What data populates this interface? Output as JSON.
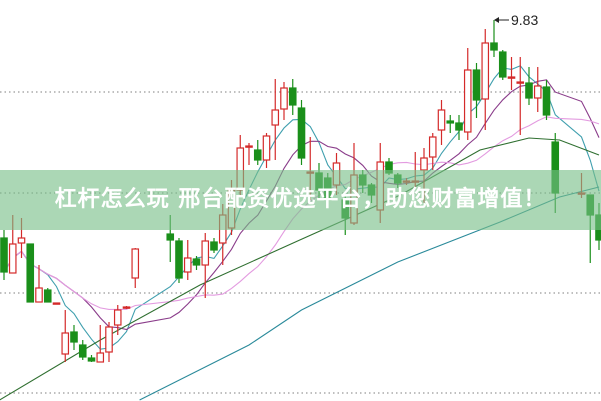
{
  "banner": {
    "text": "杠杆怎么玩 邢台配资优选平台，助您财富增值！"
  },
  "chart_data": {
    "type": "candlestick",
    "annotations": [
      {
        "label": "9.83",
        "index": 56,
        "price": 9.83
      }
    ],
    "colors": {
      "up": "#d42a2a",
      "down": "#1a8f1a",
      "ma5": "#3f9fae",
      "ma10": "#8a3c8a",
      "ma20": "#e39be0",
      "ma_long1": "#2f6f30",
      "ma_long2": "#2a8a9a",
      "grid": "#999999"
    },
    "ylim": [
      6.02,
      10.03
    ],
    "candles": [
      {
        "i": 0,
        "o": 7.65,
        "h": 7.73,
        "l": 7.23,
        "c": 7.31
      },
      {
        "i": 1,
        "o": 7.3,
        "h": 7.88,
        "l": 7.3,
        "c": 7.59
      },
      {
        "i": 2,
        "o": 7.6,
        "h": 7.85,
        "l": 7.45,
        "c": 7.65
      },
      {
        "i": 3,
        "o": 7.59,
        "h": 7.59,
        "l": 7.01,
        "c": 7.01
      },
      {
        "i": 4,
        "o": 7.01,
        "h": 7.38,
        "l": 7.01,
        "c": 7.15
      },
      {
        "i": 5,
        "o": 7.13,
        "h": 7.15,
        "l": 7.01,
        "c": 7.01
      },
      {
        "i": 6,
        "o": 7.0,
        "h": 7.0,
        "l": 7.0,
        "c": 7.0
      },
      {
        "i": 7,
        "o": 6.49,
        "h": 6.93,
        "l": 6.41,
        "c": 6.7
      },
      {
        "i": 8,
        "o": 6.71,
        "h": 6.78,
        "l": 6.53,
        "c": 6.61
      },
      {
        "i": 9,
        "o": 6.58,
        "h": 6.63,
        "l": 6.43,
        "c": 6.46
      },
      {
        "i": 10,
        "o": 6.45,
        "h": 6.48,
        "l": 6.41,
        "c": 6.42
      },
      {
        "i": 11,
        "o": 6.41,
        "h": 6.78,
        "l": 6.41,
        "c": 6.5
      },
      {
        "i": 12,
        "o": 6.51,
        "h": 6.81,
        "l": 6.41,
        "c": 6.76
      },
      {
        "i": 13,
        "o": 6.78,
        "h": 6.98,
        "l": 6.68,
        "c": 6.93
      },
      {
        "i": 14,
        "o": 6.95,
        "h": 6.97,
        "l": 6.94,
        "c": 6.96
      },
      {
        "i": 15,
        "o": 7.25,
        "h": 7.55,
        "l": 7.15,
        "c": 7.54
      },
      {
        "i": 19,
        "o": 7.69,
        "h": 7.88,
        "l": 7.41,
        "c": 7.63
      },
      {
        "i": 20,
        "o": 7.62,
        "h": 7.65,
        "l": 7.2,
        "c": 7.25
      },
      {
        "i": 21,
        "o": 7.31,
        "h": 7.63,
        "l": 7.23,
        "c": 7.45
      },
      {
        "i": 22,
        "o": 7.44,
        "h": 7.47,
        "l": 7.33,
        "c": 7.38
      },
      {
        "i": 23,
        "o": 7.38,
        "h": 7.7,
        "l": 7.05,
        "c": 7.62
      },
      {
        "i": 24,
        "o": 7.61,
        "h": 7.65,
        "l": 7.5,
        "c": 7.53
      },
      {
        "i": 25,
        "o": 7.6,
        "h": 7.99,
        "l": 7.38,
        "c": 7.88
      },
      {
        "i": 26,
        "o": 7.75,
        "h": 8.23,
        "l": 7.68,
        "c": 8.13
      },
      {
        "i": 27,
        "o": 8.13,
        "h": 8.68,
        "l": 8.08,
        "c": 8.55
      },
      {
        "i": 28,
        "o": 8.56,
        "h": 8.6,
        "l": 8.38,
        "c": 8.57
      },
      {
        "i": 29,
        "o": 8.53,
        "h": 8.63,
        "l": 8.38,
        "c": 8.43
      },
      {
        "i": 30,
        "o": 8.43,
        "h": 8.7,
        "l": 8.35,
        "c": 8.67
      },
      {
        "i": 31,
        "o": 8.78,
        "h": 9.24,
        "l": 8.43,
        "c": 8.93
      },
      {
        "i": 32,
        "o": 8.94,
        "h": 9.21,
        "l": 8.83,
        "c": 9.15
      },
      {
        "i": 33,
        "o": 9.15,
        "h": 9.24,
        "l": 8.88,
        "c": 8.98
      },
      {
        "i": 34,
        "o": 8.95,
        "h": 9.03,
        "l": 8.38,
        "c": 8.45
      },
      {
        "i": 35,
        "o": 8.3,
        "h": 8.66,
        "l": 8.03,
        "c": 8.31
      },
      {
        "i": 36,
        "o": 8.3,
        "h": 8.4,
        "l": 8.03,
        "c": 8.13
      },
      {
        "i": 37,
        "o": 8.25,
        "h": 8.3,
        "l": 7.95,
        "c": 8.03
      },
      {
        "i": 38,
        "o": 8.18,
        "h": 8.5,
        "l": 8.08,
        "c": 8.4
      },
      {
        "i": 39,
        "o": 8.03,
        "h": 8.1,
        "l": 7.68,
        "c": 7.85
      },
      {
        "i": 40,
        "o": 7.8,
        "h": 8.6,
        "l": 7.78,
        "c": 8.28
      },
      {
        "i": 41,
        "o": 8.28,
        "h": 8.33,
        "l": 8.1,
        "c": 8.18
      },
      {
        "i": 42,
        "o": 8.18,
        "h": 8.2,
        "l": 8.0,
        "c": 8.08
      },
      {
        "i": 43,
        "o": 7.93,
        "h": 8.6,
        "l": 7.8,
        "c": 8.41
      },
      {
        "i": 44,
        "o": 8.41,
        "h": 8.45,
        "l": 8.28,
        "c": 8.3
      },
      {
        "i": 45,
        "o": 8.28,
        "h": 8.3,
        "l": 8.15,
        "c": 8.2
      },
      {
        "i": 46,
        "o": 8.21,
        "h": 8.25,
        "l": 8.18,
        "c": 8.22
      },
      {
        "i": 47,
        "o": 8.21,
        "h": 8.51,
        "l": 8.15,
        "c": 8.22
      },
      {
        "i": 48,
        "o": 8.33,
        "h": 8.55,
        "l": 8.0,
        "c": 8.45
      },
      {
        "i": 49,
        "o": 8.46,
        "h": 8.7,
        "l": 8.33,
        "c": 8.66
      },
      {
        "i": 50,
        "o": 8.73,
        "h": 9.03,
        "l": 8.58,
        "c": 8.93
      },
      {
        "i": 51,
        "o": 8.82,
        "h": 8.88,
        "l": 8.7,
        "c": 8.8
      },
      {
        "i": 52,
        "o": 8.8,
        "h": 8.88,
        "l": 8.63,
        "c": 8.73
      },
      {
        "i": 53,
        "o": 8.71,
        "h": 9.55,
        "l": 8.63,
        "c": 9.33
      },
      {
        "i": 54,
        "o": 9.33,
        "h": 9.4,
        "l": 8.85,
        "c": 9.03
      },
      {
        "i": 55,
        "o": 9.04,
        "h": 9.74,
        "l": 8.73,
        "c": 9.6
      },
      {
        "i": 56,
        "o": 9.6,
        "h": 9.83,
        "l": 9.46,
        "c": 9.53
      },
      {
        "i": 57,
        "o": 9.51,
        "h": 9.53,
        "l": 9.23,
        "c": 9.26
      },
      {
        "i": 58,
        "o": 9.25,
        "h": 9.46,
        "l": 9.13,
        "c": 9.26
      },
      {
        "i": 59,
        "o": 9.2,
        "h": 9.46,
        "l": 8.68,
        "c": 9.21
      },
      {
        "i": 60,
        "o": 9.2,
        "h": 9.36,
        "l": 8.98,
        "c": 9.05
      },
      {
        "i": 61,
        "o": 9.05,
        "h": 9.36,
        "l": 8.91,
        "c": 9.17
      },
      {
        "i": 62,
        "o": 9.16,
        "h": 9.23,
        "l": 8.83,
        "c": 8.88
      },
      {
        "i": 63,
        "o": 8.61,
        "h": 8.7,
        "l": 7.9,
        "c": 8.1
      },
      {
        "i": 66,
        "o": 8.1,
        "h": 8.3,
        "l": 8.05,
        "c": 8.1
      },
      {
        "i": 67,
        "o": 8.08,
        "h": 8.08,
        "l": 7.4,
        "c": 7.88
      },
      {
        "i": 68,
        "o": 7.88,
        "h": 8.0,
        "l": 7.53,
        "c": 7.63
      }
    ],
    "long_ma_lines": [
      {
        "key": "ma_long1",
        "points": [
          [
            -0.5,
            6.03
          ],
          [
            11,
            6.63
          ],
          [
            22.4,
            7.18
          ],
          [
            33.8,
            7.63
          ],
          [
            45.3,
            8.08
          ],
          [
            54.4,
            8.53
          ],
          [
            60,
            8.65
          ],
          [
            63.5,
            8.63
          ],
          [
            68,
            8.48
          ]
        ]
      },
      {
        "key": "ma_long2",
        "points": [
          [
            15.5,
            6.03
          ],
          [
            28,
            6.58
          ],
          [
            34,
            6.93
          ],
          [
            45,
            7.41
          ],
          [
            56.7,
            7.81
          ],
          [
            63.5,
            8.06
          ],
          [
            68,
            8.16
          ]
        ]
      }
    ]
  }
}
